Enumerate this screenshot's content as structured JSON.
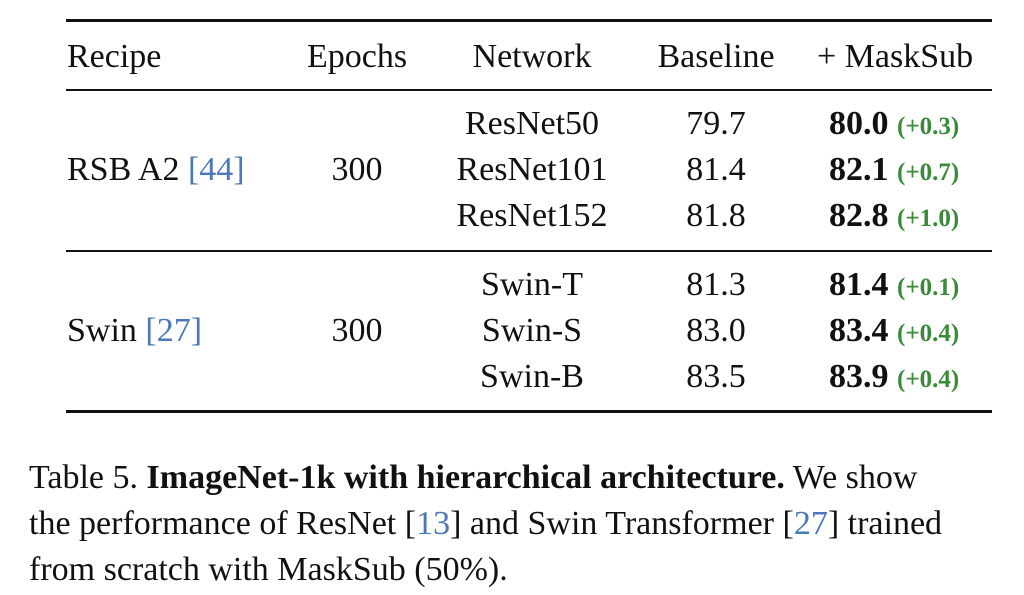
{
  "table": {
    "headers": [
      "Recipe",
      "Epochs",
      "Network",
      "Baseline",
      "+ MaskSub"
    ],
    "groups": [
      {
        "recipe": "RSB A2",
        "recipe_cite": "44",
        "epochs": "300",
        "rows": [
          {
            "network": "ResNet50",
            "baseline": "79.7",
            "masksub": "80.0",
            "delta": "(+0.3)"
          },
          {
            "network": "ResNet101",
            "baseline": "81.4",
            "masksub": "82.1",
            "delta": "(+0.7)"
          },
          {
            "network": "ResNet152",
            "baseline": "81.8",
            "masksub": "82.8",
            "delta": "(+1.0)"
          }
        ]
      },
      {
        "recipe": "Swin",
        "recipe_cite": "27",
        "epochs": "300",
        "rows": [
          {
            "network": "Swin-T",
            "baseline": "81.3",
            "masksub": "81.4",
            "delta": "(+0.1)"
          },
          {
            "network": "Swin-S",
            "baseline": "83.0",
            "masksub": "83.4",
            "delta": "(+0.4)"
          },
          {
            "network": "Swin-B",
            "baseline": "83.5",
            "masksub": "83.9",
            "delta": "(+0.4)"
          }
        ]
      }
    ]
  },
  "caption": {
    "label": "Table 5.",
    "title": "ImageNet-1k with hierarchical architecture.",
    "line1_rest": "We show",
    "line2_a": "the performance of ResNet [",
    "cite_resnet": "13",
    "line2_b": "] and Swin Transformer [",
    "cite_swin": "27",
    "line2_c": "] trained",
    "line3": "from scratch with MaskSub (50%)."
  },
  "colors": {
    "delta_green": "#3a8a3a",
    "citation_blue": "#4a78b8"
  }
}
